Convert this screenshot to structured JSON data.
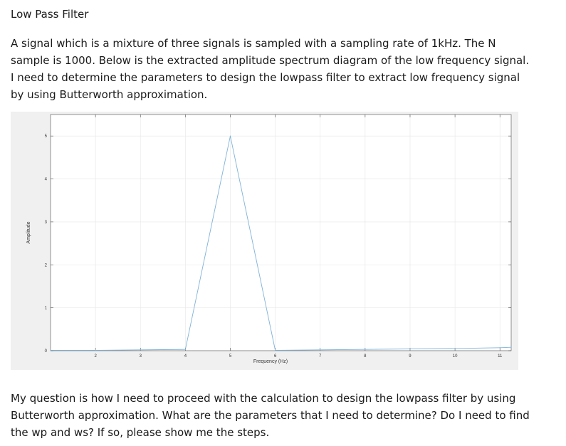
{
  "doc": {
    "title": "Low Pass Filter",
    "paragraph1": "A signal which is a mixture of three signals is sampled with a sampling rate of 1kHz. The N sample is 1000. Below is the extracted amplitude spectrum diagram of the low frequency signal. I need to determine the parameters to design the lowpass filter to extract low frequency signal by using Butterworth approximation.",
    "paragraph2": "My question is how I need to proceed with the calculation to design the lowpass filter by using Butterworth approximation. What are the parameters that I need to determine? Do I need to find the wp and ws? If so, please show me the steps."
  },
  "chart_data": {
    "type": "line",
    "xlabel": "Frequency (Hz)",
    "ylabel": "Amplitude",
    "xlim": [
      1,
      11.25
    ],
    "ylim": [
      0,
      5.5
    ],
    "xticks": [
      2,
      3,
      4,
      5,
      6,
      7,
      8,
      9,
      10,
      11
    ],
    "yticks": [
      0,
      1,
      2,
      3,
      4,
      5
    ],
    "grid": true,
    "line_color": "#7fb2d8",
    "x": [
      1,
      2,
      3,
      4,
      5,
      6,
      7,
      8,
      9,
      10,
      11,
      11.25
    ],
    "y": [
      0.01,
      0.01,
      0.02,
      0.03,
      5.0,
      0.01,
      0.02,
      0.03,
      0.04,
      0.05,
      0.07,
      0.08
    ]
  }
}
